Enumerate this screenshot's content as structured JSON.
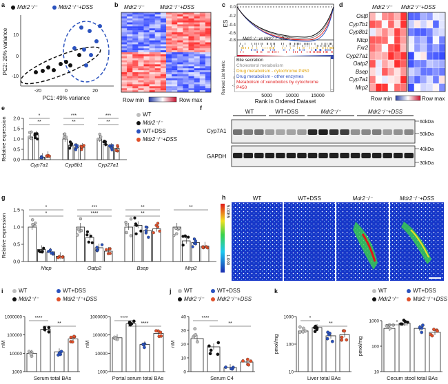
{
  "panels": {
    "a": "a",
    "b": "b",
    "c": "c",
    "d": "d",
    "e": "e",
    "f": "f",
    "g": "g",
    "h": "h",
    "i": "i",
    "j": "j",
    "k": "k"
  },
  "colors": {
    "wt": "#bdbdbd",
    "mdr2": "#111111",
    "wtdss": "#2a52be",
    "mdr2dss": "#e0502a"
  },
  "group_labels": {
    "wt": "WT",
    "mdr2": "Mdr2⁻/⁻",
    "wtdss": "WT+DSS",
    "mdr2dss": "Mdr2⁻/⁻+DSS"
  },
  "pca": {
    "legend": [
      "Mdr2⁻/⁻",
      "Mdr2⁻/⁻+DSS"
    ],
    "xlabel": "PC1: 49% variance",
    "ylabel": "PC2: 20% variance",
    "xticks": [
      "-20",
      "0",
      "20"
    ],
    "yticks": [
      "-10",
      "0",
      "10"
    ]
  },
  "heatmap_b": {
    "col1": "Mdr2⁻/⁻",
    "col2": "Mdr2⁻/⁻+DSS",
    "min": "Row min",
    "max": "Row max"
  },
  "gsea": {
    "ylabel": "ES",
    "title": "Mdr2⁻/⁻ vs Mdr2⁻/⁻+DSS",
    "yticks": [
      "0.0",
      "-0.2",
      "-0.4",
      "-0.6",
      "-0.8"
    ],
    "ranked_label": "Ranked List Metric",
    "ranked_ticks": [
      "1",
      "0",
      "-1"
    ],
    "xticks": [
      "5000",
      "10000",
      "15000"
    ],
    "xlabel": "Rank in Ordered Dataset",
    "gene_sets": [
      {
        "name": "Bile secretion",
        "color": "#111111"
      },
      {
        "name": "Cholesterol metabolism",
        "color": "#8a8a8a"
      },
      {
        "name": "Drug metabolism - cytochrome P450",
        "color": "#e0a000"
      },
      {
        "name": "Drug metabolism - other enzymes",
        "color": "#2a4fbf"
      },
      {
        "name": "Metabolism of xenobiotics by cytochrome P450",
        "color": "#e02020"
      }
    ]
  },
  "heatmap_d": {
    "col1": "Mdr2⁻/⁻",
    "col2": "Mdr2⁻/⁻+DSS",
    "genes": [
      "Ostβ",
      "Cyp7b1",
      "Cyp8b1",
      "Ntcp",
      "Fxr2",
      "Cyp27a1",
      "Oatp2",
      "Bsep",
      "Cyp7a1",
      "Mrp2"
    ],
    "min": "Row min",
    "max": "Row max"
  },
  "panel_e": {
    "ylabel": "Relative expression",
    "yticks": [
      "0.0",
      "0.5",
      "1.0",
      "1.5",
      "2.0"
    ],
    "genes": [
      "Cyp7a1",
      "Cyp8b1",
      "Cyp27a1"
    ],
    "sig": [
      "*",
      "**",
      "***",
      "**",
      "***",
      "**"
    ],
    "legend": [
      "WT",
      "Mdr2⁻/⁻",
      "WT+DSS",
      "Mdr2⁻/⁻+DSS"
    ],
    "chart_data": {
      "type": "bar",
      "categories": [
        "Cyp7a1",
        "Cyp8b1",
        "Cyp27a1"
      ],
      "ylabel": "Relative expression",
      "ylim": [
        0,
        2.0
      ],
      "series": [
        {
          "name": "WT",
          "values": [
            1.1,
            1.0,
            1.0
          ]
        },
        {
          "name": "Mdr2⁻/⁻",
          "values": [
            1.2,
            0.7,
            0.75
          ]
        },
        {
          "name": "WT+DSS",
          "values": [
            0.12,
            0.6,
            0.6
          ]
        },
        {
          "name": "Mdr2⁻/⁻+DSS",
          "values": [
            0.2,
            0.6,
            0.55
          ]
        }
      ]
    }
  },
  "panel_f": {
    "groups": [
      "WT",
      "WT+DSS",
      "Mdr2⁻/⁻",
      "Mdr2⁻/⁻+DSS"
    ],
    "rows": [
      "Cyp7A1",
      "GAPDH"
    ],
    "kda": [
      "60kDa",
      "50kDa",
      "40kDa",
      "30kDa"
    ]
  },
  "panel_g": {
    "ylabel": "Relative expression",
    "yticks": [
      "0.0",
      "0.5",
      "1.0",
      "1.5"
    ],
    "genes": [
      "Ntcp",
      "Oatp2",
      "Bsep",
      "Mrp2"
    ],
    "sig": [
      "*",
      "*",
      "***",
      "****",
      "**",
      "**",
      "**"
    ],
    "chart_data": {
      "type": "bar",
      "categories": [
        "Ntcp",
        "Oatp2",
        "Bsep",
        "Mrp2"
      ],
      "ylabel": "Relative expression",
      "ylim": [
        0,
        1.5
      ],
      "series": [
        {
          "name": "WT",
          "values": [
            1.0,
            1.0,
            1.0,
            1.0
          ]
        },
        {
          "name": "Mdr2⁻/⁻",
          "values": [
            0.35,
            0.7,
            1.05,
            0.6
          ]
        },
        {
          "name": "WT+DSS",
          "values": [
            0.28,
            0.4,
            0.9,
            0.55
          ]
        },
        {
          "name": "Mdr2⁻/⁻+DSS",
          "values": [
            0.15,
            0.3,
            0.95,
            0.45
          ]
        }
      ]
    }
  },
  "panel_h": {
    "titles": [
      "WT",
      "WT+DSS",
      "Mdr2⁻/⁻",
      "Mdr2⁻/⁻+DSS"
    ],
    "scale_max": "5.00E5",
    "scale_min": "1.000"
  },
  "panel_i": {
    "legend": [
      "WT",
      "Mdr2⁻/⁻",
      "WT+DSS",
      "Mdr2⁻/⁻+DSS"
    ],
    "plots": [
      {
        "xlabel": "Serum total BAs",
        "ylabel": "nM",
        "yticks": [
          "1000",
          "10000",
          "100000",
          "1000000"
        ],
        "sig": [
          "****",
          "**"
        ],
        "chart_data": {
          "type": "bar",
          "ylabel": "nM",
          "ylim": [
            1000,
            1000000
          ],
          "categories": [
            "WT",
            "Mdr2⁻/⁻",
            "WT+DSS",
            "Mdr2⁻/⁻+DSS"
          ],
          "values": [
            10000,
            200000,
            12000,
            60000
          ]
        }
      },
      {
        "xlabel": "Portal serum total BAs",
        "ylabel": "nM",
        "yticks": [
          "1000",
          "10000",
          "100000",
          "1000000"
        ],
        "sig": [
          "****",
          "****"
        ],
        "chart_data": {
          "type": "bar",
          "ylabel": "nM",
          "ylim": [
            1000,
            1000000
          ],
          "categories": [
            "WT",
            "Mdr2⁻/⁻",
            "WT+DSS",
            "Mdr2⁻/⁻+DSS"
          ],
          "values": [
            70000,
            400000,
            30000,
            120000
          ]
        }
      }
    ]
  },
  "panel_j": {
    "legend": [
      "WT",
      "Mdr2⁻/⁻",
      "WT+DSS",
      "Mdr2⁻/⁻+DSS"
    ],
    "xlabel": "Serum C4",
    "ylabel": "nM",
    "yticks": [
      "0",
      "10",
      "20",
      "30",
      "40"
    ],
    "sig": [
      "****",
      "**"
    ],
    "chart_data": {
      "type": "bar",
      "ylabel": "nM",
      "ylim": [
        0,
        40
      ],
      "categories": [
        "WT",
        "Mdr2⁻/⁻",
        "WT+DSS",
        "Mdr2⁻/⁻+DSS"
      ],
      "values": [
        24,
        18,
        3,
        7
      ]
    }
  },
  "panel_k": {
    "xlabel": "Liver total BAs",
    "ylabel": "pmol/mg",
    "yticks": [
      "10",
      "100",
      "1000"
    ],
    "sig": [
      "*",
      "**"
    ],
    "chart_data": {
      "type": "bar",
      "ylabel": "pmol/mg",
      "ylim": [
        10,
        1000
      ],
      "categories": [
        "WT",
        "Mdr2⁻/⁻",
        "WT+DSS",
        "Mdr2⁻/⁻+DSS"
      ],
      "values": [
        300,
        400,
        200,
        220
      ]
    }
  },
  "panel_l": {
    "legend": [
      "WT",
      "Mdr2⁻/⁻",
      "WT+DSS",
      "Mdr2⁻/⁻+DSS"
    ],
    "xlabel": "Cecum stool total BAs",
    "ylabel": "pmol/mg",
    "yticks": [
      "10",
      "100",
      "1000"
    ],
    "sig": [
      "*"
    ],
    "chart_data": {
      "type": "bar",
      "ylabel": "pmol/mg",
      "ylim": [
        10,
        1000
      ],
      "categories": [
        "WT",
        "Mdr2⁻/⁻",
        "WT+DSS",
        "Mdr2⁻/⁻+DSS"
      ],
      "values": [
        500,
        800,
        500,
        350
      ]
    }
  }
}
